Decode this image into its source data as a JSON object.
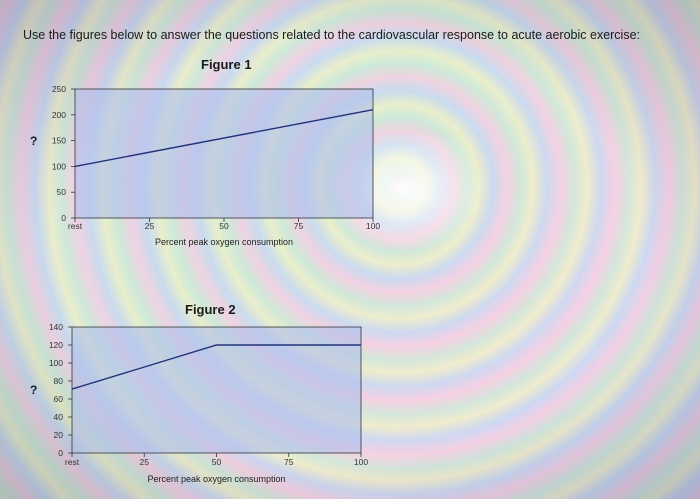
{
  "instruction": "Use the figures below to answer the questions related to the cardiovascular response to acute aerobic exercise:",
  "question_marks": [
    "?",
    "?"
  ],
  "colors": {
    "line": "#22337a",
    "plot_bg": "rgba(175,190,235,0.6)",
    "axis": "#333333"
  },
  "chart_data": [
    {
      "type": "line",
      "title": "Figure 1",
      "xlabel": "Percent peak oxygen consumption",
      "ylabel": "",
      "x_tick_labels": [
        "rest",
        "25",
        "50",
        "75",
        "100"
      ],
      "y_ticks": [
        0,
        50,
        100,
        150,
        200,
        250
      ],
      "ylim": [
        0,
        250
      ],
      "series": [
        {
          "x": [
            "rest",
            100
          ],
          "y": [
            100,
            210
          ]
        }
      ]
    },
    {
      "type": "line",
      "title": "Figure 2",
      "xlabel": "Percent peak oxygen consumption",
      "ylabel": "",
      "x_tick_labels": [
        "rest",
        "25",
        "50",
        "75",
        "100"
      ],
      "y_ticks": [
        0,
        20,
        40,
        60,
        80,
        100,
        120,
        140
      ],
      "ylim": [
        0,
        140
      ],
      "series": [
        {
          "x": [
            "rest",
            50,
            100
          ],
          "y": [
            71,
            120,
            120
          ]
        }
      ]
    }
  ]
}
